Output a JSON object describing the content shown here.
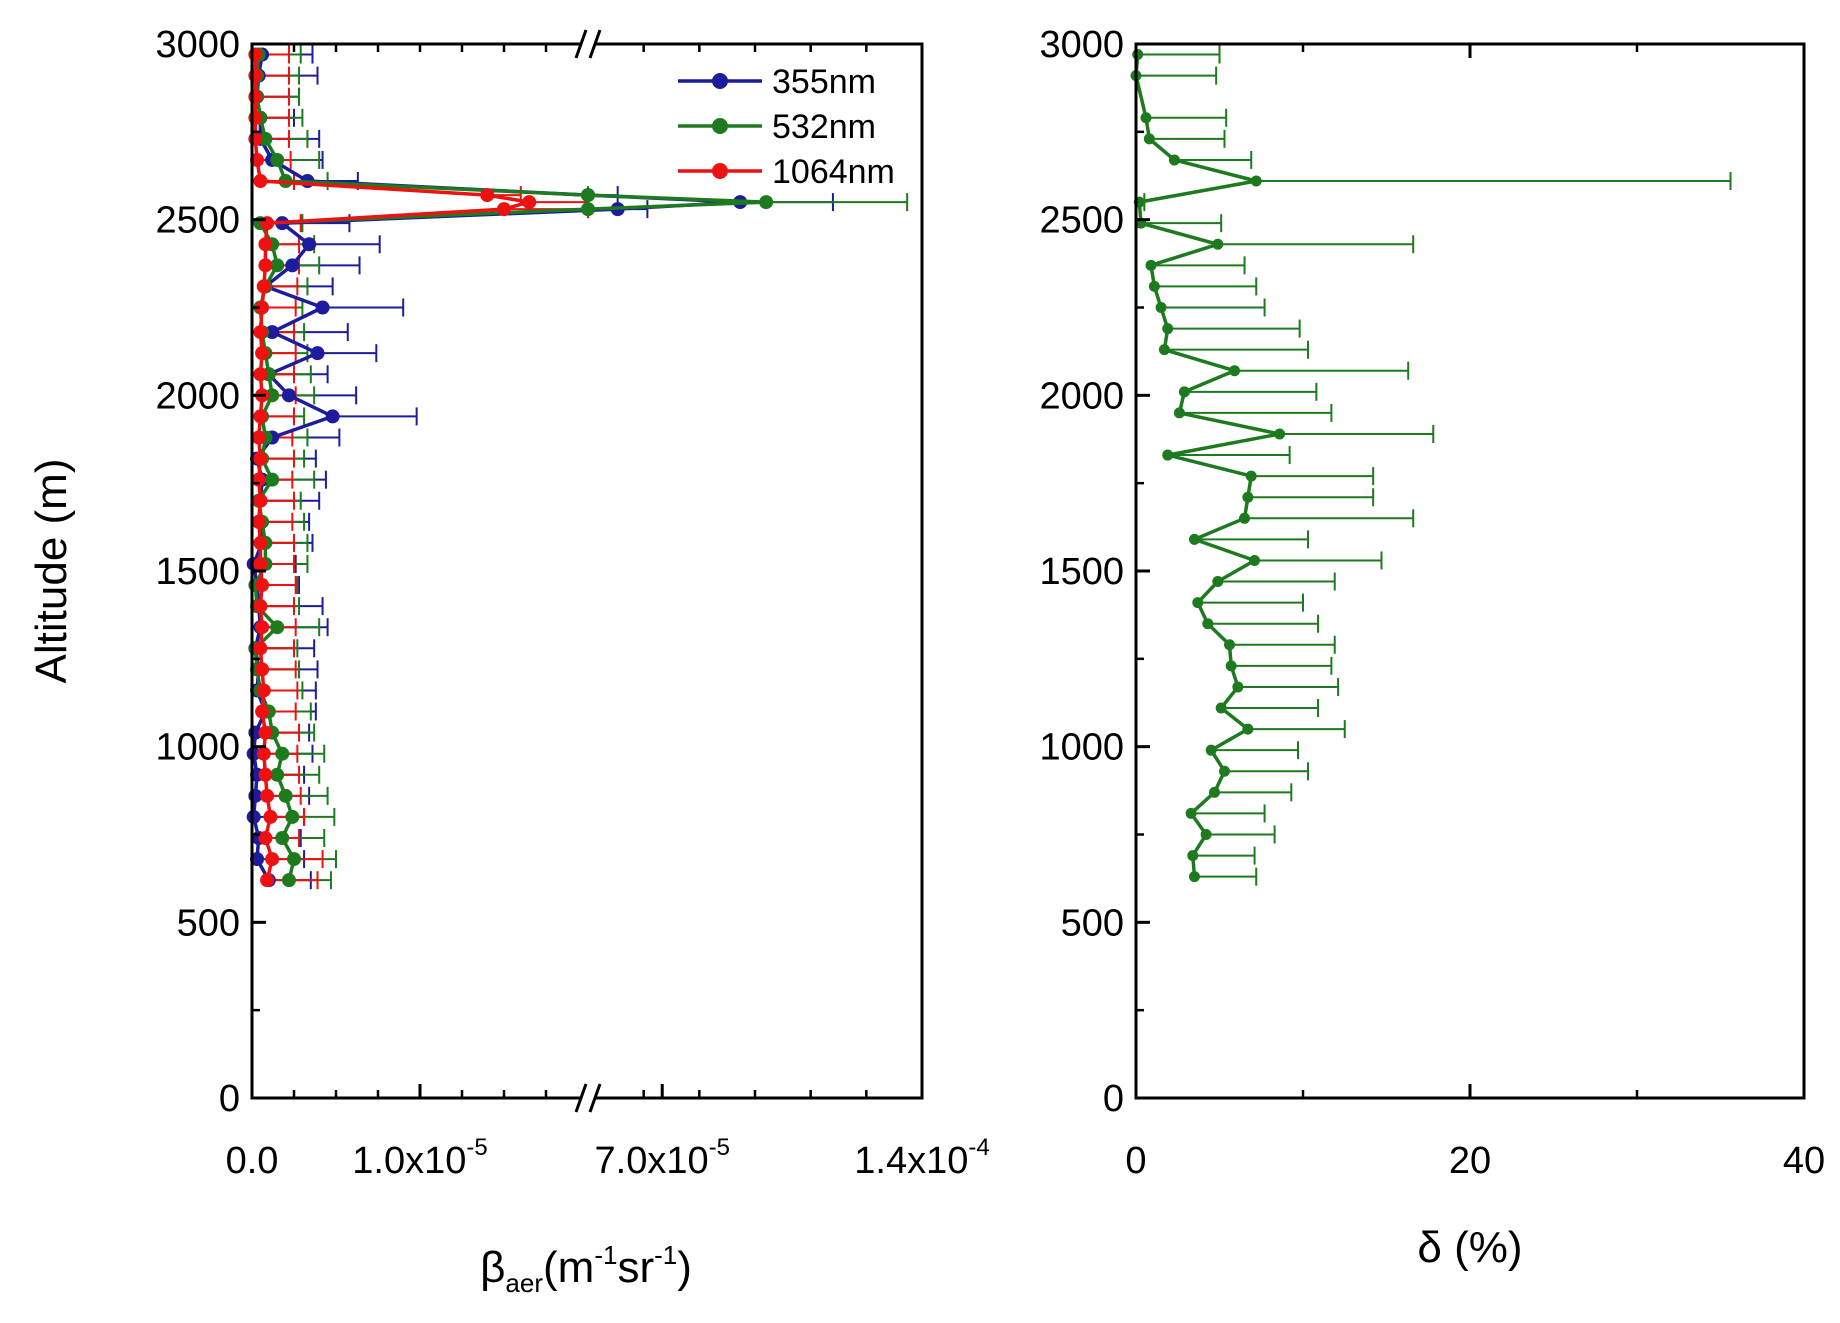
{
  "chart_data": [
    {
      "type": "line",
      "panel": "left",
      "xaxis": {
        "label_base": "β",
        "label_sub": "aer",
        "label_unit_parts": [
          "(m",
          "-1",
          "sr",
          "-1",
          ")"
        ],
        "broken": true,
        "segments": [
          {
            "range": [
              0,
              2e-05
            ]
          },
          {
            "range": [
              5e-05,
              0.00014
            ]
          }
        ],
        "tick_labels": [
          {
            "value": 0,
            "label": "0.0",
            "exp": ""
          },
          {
            "value": 1e-05,
            "label": "1.0x10",
            "exp": "-5"
          },
          {
            "value": 7e-05,
            "label": "7.0x10",
            "exp": "-5"
          },
          {
            "value": 0.00014,
            "label": "1.4x10",
            "exp": "-4"
          }
        ]
      },
      "yaxis": {
        "label": "Altitude (m)",
        "range": [
          0,
          3000
        ],
        "ticks": [
          0,
          500,
          1000,
          1500,
          2000,
          2500,
          3000
        ]
      },
      "legend": {
        "position": "top-right",
        "entries": [
          "355nm",
          "532nm",
          "1064nm"
        ]
      },
      "series": [
        {
          "name": "355nm",
          "color": "#1c1c9c",
          "altitudes": [
            620,
            680,
            740,
            800,
            860,
            920,
            980,
            1040,
            1100,
            1160,
            1220,
            1280,
            1340,
            1400,
            1460,
            1520,
            1580,
            1640,
            1700,
            1760,
            1820,
            1880,
            1940,
            2000,
            2060,
            2120,
            2180,
            2250,
            2310,
            2370,
            2430,
            2490,
            2530,
            2550,
            2570,
            2610,
            2670,
            2730,
            2790,
            2850,
            2910,
            2970
          ],
          "values": [
            1e-06,
            3e-07,
            4e-07,
            1e-07,
            2e-07,
            3e-07,
            1e-07,
            2e-07,
            8e-07,
            3e-07,
            4e-07,
            2e-07,
            5e-07,
            4e-07,
            3e-07,
            1e-07,
            6e-07,
            4e-07,
            5e-07,
            6e-07,
            3e-07,
            1.2e-06,
            4.8e-06,
            2.2e-06,
            1e-06,
            3.9e-06,
            1.2e-06,
            4.2e-06,
            8e-07,
            2.4e-06,
            3.4e-06,
            1.8e-06,
            5.8e-05,
            9.1e-05,
            5e-05,
            3.3e-06,
            1.2e-06,
            5e-07,
            5e-07,
            3e-07,
            4e-07,
            6e-07
          ],
          "errors": [
            2.5e-06,
            2.8e-06,
            2.5e-06,
            3e-06,
            3.2e-06,
            2.8e-06,
            3.5e-06,
            3.2e-06,
            3e-06,
            3.5e-06,
            3.5e-06,
            3.5e-06,
            4e-06,
            3.8e-06,
            2.5e-06,
            2.5e-06,
            3e-06,
            3e-06,
            3.5e-06,
            3.8e-06,
            3.5e-06,
            4e-06,
            5e-06,
            4e-06,
            3.5e-06,
            3.5e-06,
            4.5e-06,
            4.8e-06,
            4e-06,
            4e-06,
            4.2e-06,
            4e-06,
            8e-06,
            2.5e-05,
            8e-06,
            3e-06,
            3e-06,
            3.5e-06,
            2e-06,
            2.5e-06,
            3.5e-06,
            3e-06
          ]
        },
        {
          "name": "532nm",
          "color": "#1e7a1e",
          "altitudes": [
            620,
            680,
            740,
            800,
            860,
            920,
            980,
            1040,
            1100,
            1160,
            1220,
            1280,
            1340,
            1400,
            1460,
            1520,
            1580,
            1640,
            1700,
            1760,
            1820,
            1880,
            1940,
            2000,
            2060,
            2120,
            2180,
            2250,
            2310,
            2370,
            2430,
            2490,
            2530,
            2550,
            2570,
            2610,
            2670,
            2730,
            2790,
            2850,
            2910,
            2970
          ],
          "values": [
            2.2e-06,
            2.5e-06,
            1.8e-06,
            2.4e-06,
            2e-06,
            1.5e-06,
            1.8e-06,
            1.2e-06,
            1e-06,
            5e-07,
            3e-07,
            2e-07,
            1.5e-06,
            3e-07,
            2e-07,
            8e-07,
            8e-07,
            6e-07,
            4e-07,
            1.2e-06,
            6e-07,
            8e-07,
            6e-07,
            1.2e-06,
            1e-06,
            8e-07,
            6e-07,
            5e-07,
            8e-07,
            1.5e-06,
            1.2e-06,
            5e-07,
            3e-05,
            9.8e-05,
            4e-05,
            2e-06,
            1.5e-06,
            8e-07,
            5e-07,
            3e-07,
            3e-07,
            4e-07
          ],
          "errors": [
            2.5e-06,
            2.5e-06,
            2.5e-06,
            2.5e-06,
            2.5e-06,
            2.5e-06,
            2.5e-06,
            2.5e-06,
            2.5e-06,
            2.5e-06,
            2.5e-06,
            2.5e-06,
            2.5e-06,
            2.5e-06,
            2.5e-06,
            2.5e-06,
            2.5e-06,
            2.5e-06,
            2.5e-06,
            2.5e-06,
            2.5e-06,
            2.5e-06,
            2.5e-06,
            2.5e-06,
            2.5e-06,
            2.5e-06,
            2.5e-06,
            2.5e-06,
            2.5e-06,
            2.5e-06,
            2.5e-06,
            2.5e-06,
            6e-06,
            3.8e-05,
            6e-06,
            2.5e-06,
            2.5e-06,
            2.5e-06,
            2.5e-06,
            2.5e-06,
            2.5e-06,
            2.5e-06
          ]
        },
        {
          "name": "1064nm",
          "color": "#ee1111",
          "altitudes": [
            620,
            680,
            740,
            800,
            860,
            920,
            980,
            1040,
            1100,
            1160,
            1220,
            1280,
            1340,
            1400,
            1460,
            1520,
            1580,
            1640,
            1700,
            1760,
            1820,
            1880,
            1940,
            2000,
            2060,
            2120,
            2180,
            2250,
            2310,
            2370,
            2430,
            2490,
            2530,
            2550,
            2570,
            2610,
            2670,
            2730,
            2790,
            2850,
            2910,
            2970
          ],
          "values": [
            9e-07,
            1.2e-06,
            8e-07,
            1.1e-06,
            9e-07,
            8e-07,
            7e-07,
            8e-07,
            6e-07,
            7e-07,
            6e-07,
            5e-07,
            6e-07,
            5e-07,
            6e-07,
            5e-07,
            5e-07,
            4e-07,
            5e-07,
            4e-07,
            5e-07,
            4e-07,
            5e-07,
            6e-07,
            5e-07,
            6e-07,
            5e-07,
            6e-07,
            7e-07,
            8e-07,
            8e-07,
            9e-07,
            1.5e-05,
            1.65e-05,
            1.4e-05,
            5e-07,
            3e-07,
            2e-07,
            2e-07,
            2e-07,
            2e-07,
            2e-07
          ],
          "errors": [
            3e-06,
            3e-06,
            2e-06,
            2e-06,
            2e-06,
            2e-06,
            2e-06,
            2e-06,
            2e-06,
            2e-06,
            2e-06,
            2e-06,
            2e-06,
            2e-06,
            2e-06,
            2e-06,
            2e-06,
            2e-06,
            2e-06,
            2e-06,
            2e-06,
            2e-06,
            2e-06,
            2e-06,
            2e-06,
            2e-06,
            2e-06,
            2e-06,
            2e-06,
            2e-06,
            2e-06,
            2e-06,
            5e-06,
            5e-06,
            2e-06,
            2e-06,
            2e-06,
            2e-06,
            2e-06,
            2e-06,
            2e-06,
            2e-06
          ]
        }
      ]
    },
    {
      "type": "line",
      "panel": "right",
      "xaxis": {
        "label": "δ (%)",
        "range": [
          0,
          40
        ],
        "ticks": [
          0,
          20,
          40
        ]
      },
      "yaxis": {
        "range": [
          0,
          3000
        ],
        "ticks": [
          0,
          500,
          1000,
          1500,
          2000,
          2500,
          3000
        ]
      },
      "series": [
        {
          "name": "",
          "color": "#1e7a1e",
          "altitudes": [
            630,
            690,
            750,
            810,
            870,
            930,
            990,
            1050,
            1110,
            1170,
            1230,
            1290,
            1350,
            1410,
            1470,
            1530,
            1590,
            1650,
            1710,
            1770,
            1830,
            1890,
            1950,
            2010,
            2070,
            2130,
            2190,
            2250,
            2310,
            2370,
            2430,
            2490,
            2550,
            2610,
            2670,
            2730,
            2790,
            2910,
            2970
          ],
          "values": [
            3.5,
            3.4,
            4.2,
            3.3,
            4.7,
            5.3,
            4.5,
            6.7,
            5.1,
            6.1,
            5.7,
            5.6,
            4.3,
            3.7,
            4.9,
            7.1,
            3.5,
            6.5,
            6.7,
            6.9,
            1.9,
            8.6,
            2.6,
            2.9,
            5.9,
            1.7,
            1.9,
            1.5,
            1.1,
            0.9,
            4.9,
            0.3,
            0.2,
            7.2,
            2.3,
            0.8,
            0.6,
            0.0,
            0.1
          ],
          "errors": [
            3.7,
            3.7,
            4.1,
            4.4,
            4.6,
            5.0,
            5.2,
            5.8,
            5.8,
            6.0,
            6.0,
            6.3,
            6.6,
            6.3,
            7.0,
            7.6,
            6.8,
            10.1,
            7.5,
            7.3,
            7.3,
            9.2,
            9.1,
            7.9,
            10.4,
            8.6,
            7.9,
            6.2,
            6.1,
            5.6,
            11.7,
            4.8,
            0.3,
            28.4,
            4.6,
            4.5,
            4.8,
            4.8,
            4.9
          ]
        }
      ]
    }
  ]
}
